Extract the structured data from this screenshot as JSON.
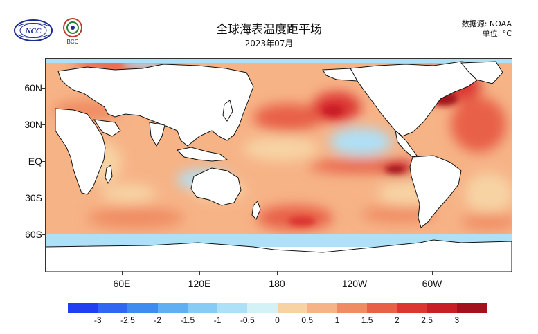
{
  "header": {
    "title": "全球海表温度距平场",
    "subtitle": "2023年07月",
    "source_label": "数据源: NOAA",
    "unit_label": "单位: °C"
  },
  "logos": {
    "left_text": "NCC",
    "right_text": "BCC"
  },
  "axes": {
    "y_labels": [
      "60N",
      "30N",
      "EQ",
      "30S",
      "60S"
    ],
    "x_labels": [
      "60E",
      "120E",
      "180",
      "120W",
      "60W"
    ]
  },
  "colorbar": {
    "colors": [
      "#1f3ff0",
      "#2f66f2",
      "#3f8cf0",
      "#5fb0f2",
      "#86ccf5",
      "#aee0f7",
      "#d2f2f8",
      "#f7d3a4",
      "#f6b386",
      "#f08c64",
      "#e86146",
      "#dc3630",
      "#c81f27",
      "#a3121c"
    ],
    "labels": [
      "-3",
      "-2.5",
      "-2",
      "-1.5",
      "-1",
      "-0.5",
      "0",
      "0.5",
      "1",
      "1.5",
      "2",
      "2.5",
      "3"
    ]
  },
  "legend_colors": {
    "land": "#ffffff",
    "coast": "#111111",
    "warm": "#f08c64",
    "cool": "#aee0f7"
  }
}
